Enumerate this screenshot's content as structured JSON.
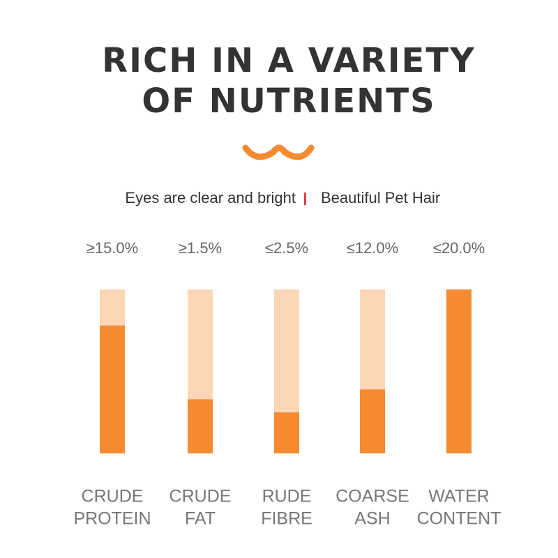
{
  "header": {
    "title_lines": [
      "RICH IN A VARIETY",
      "OF NUTRIENTS"
    ],
    "subtitle_left": "Eyes are clear and bright",
    "subtitle_right": "Beautiful Pet Hair"
  },
  "nutrients": [
    {
      "amount": "≥15.0%",
      "label_lines": [
        "CRUDE",
        "PROTEIN"
      ],
      "fill": 78
    },
    {
      "amount": "≥1.5%",
      "label_lines": [
        "CRUDE",
        "FAT"
      ],
      "fill": 33
    },
    {
      "amount": "≤2.5%",
      "label_lines": [
        "RUDE",
        "FIBRE"
      ],
      "fill": 25
    },
    {
      "amount": "≤12.0%",
      "label_lines": [
        "COARSE",
        "ASH"
      ],
      "fill": 39
    },
    {
      "amount": "≤20.0%",
      "label_lines": [
        "WATER",
        "CONTENT"
      ],
      "fill": 100
    }
  ]
}
